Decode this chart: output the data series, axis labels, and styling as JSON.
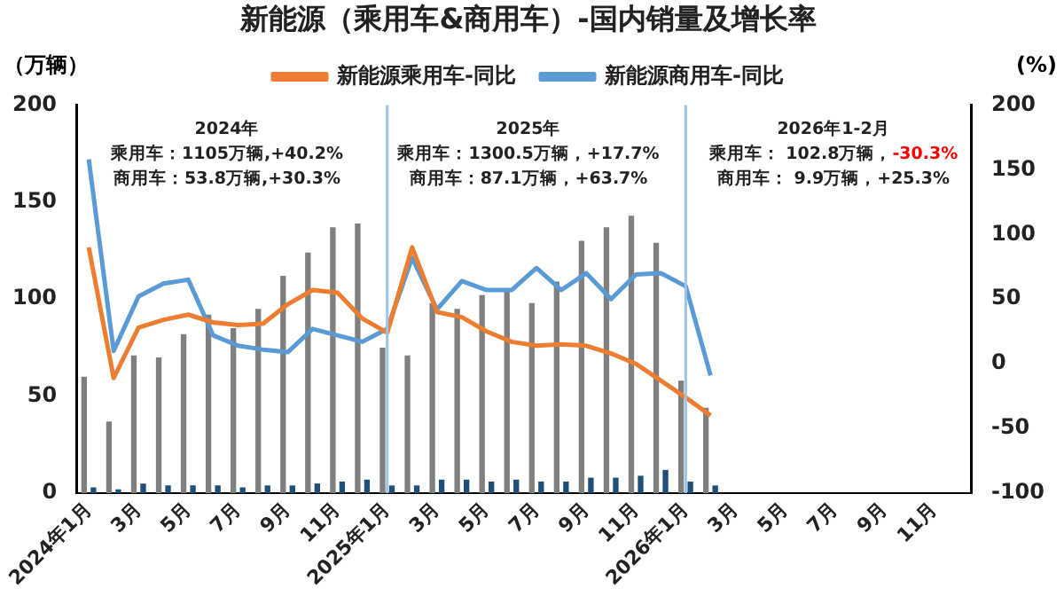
{
  "chart_data": {
    "type": "bar",
    "title": "新能源（乘用车&商用车）-国内销量及增长率",
    "categories": [
      "2024年1月",
      null,
      "3月",
      null,
      "5月",
      null,
      "7月",
      null,
      "9月",
      null,
      "11月",
      null,
      "2025年1月",
      null,
      "3月",
      null,
      "5月",
      null,
      "7月",
      null,
      "9月",
      null,
      "11月",
      null,
      "2026年1月",
      null,
      "3月",
      null,
      "5月",
      null,
      "7月",
      null,
      "9月",
      null,
      "11月",
      null
    ],
    "series": [
      {
        "axis": "y",
        "color": "#7f7f7f",
        "values": [
          60,
          37,
          71,
          70,
          82,
          92,
          85,
          95,
          112,
          124,
          137,
          139,
          75,
          71,
          98,
          95,
          102,
          104,
          98,
          109,
          130,
          137,
          143,
          129,
          58,
          44,
          null,
          null,
          null,
          null,
          null,
          null,
          null,
          null,
          null,
          null
        ]
      },
      {
        "axis": "y",
        "color": "#1f4e79",
        "values": [
          3,
          2,
          5,
          4,
          4,
          4,
          3,
          4,
          4,
          5,
          6,
          7,
          4,
          4,
          7,
          7,
          6,
          7,
          6,
          6,
          8,
          8,
          9,
          12,
          6,
          4,
          null,
          null,
          null,
          null,
          null,
          null,
          null,
          null,
          null,
          null
        ]
      },
      {
        "type": "line",
        "axis": "y2",
        "name": "新能源乘用车-同比",
        "color": "#ed7d31",
        "values": [
          90,
          -11,
          28,
          34,
          38,
          32,
          30,
          31,
          46,
          57,
          55,
          35,
          24,
          90,
          40,
          36,
          25,
          17,
          14,
          15,
          14,
          8,
          0,
          -13,
          -26,
          -40,
          null,
          null,
          null,
          null,
          null,
          null,
          null,
          null,
          null,
          null
        ]
      },
      {
        "type": "line",
        "axis": "y2",
        "name": "新能源商用车-同比",
        "color": "#5b9bd5",
        "values": [
          158,
          10,
          52,
          62,
          65,
          22,
          14,
          11,
          9,
          27,
          22,
          17,
          27,
          82,
          42,
          64,
          57,
          57,
          74,
          57,
          70,
          50,
          69,
          70,
          60,
          -9,
          null,
          null,
          null,
          null,
          null,
          null,
          null,
          null,
          null,
          null
        ]
      }
    ],
    "ylabel": "（万辆）",
    "y2label": "(%)",
    "ylim": [
      0,
      200
    ],
    "yticks": [
      0,
      50,
      100,
      150,
      200
    ],
    "y2lim": [
      -100,
      200
    ],
    "y2ticks": [
      -100,
      -50,
      0,
      50,
      100,
      150,
      200
    ],
    "ref_lines": [
      {
        "axis": "x",
        "value": "2025年1月",
        "color": "#9dc3e6"
      },
      {
        "axis": "x",
        "value": "2026年1月",
        "color": "#9dc3e6"
      }
    ],
    "annotations": [
      "2024年",
      "乘用车：1105万辆,+40.2%",
      "商用车：53.8万辆,+30.3%",
      "2025年",
      "乘用车：1300.5万辆，+17.7%",
      "商用车：87.1万辆，+63.7%",
      "2026年1-2月",
      "乘用车： 102.8万辆，-30.3%",
      "商用车： 9.9万辆，+25.3%"
    ],
    "legend": "top",
    "grid": false,
    "marker": "none",
    "line_style": "solid"
  }
}
